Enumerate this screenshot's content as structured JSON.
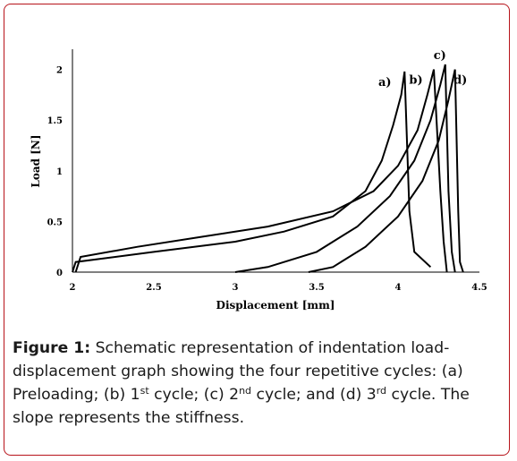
{
  "chart_data": {
    "type": "line",
    "xlabel": "Displacement [mm]",
    "ylabel": "Load [N]",
    "xlim": [
      2,
      4.5
    ],
    "ylim": [
      0,
      2.2
    ],
    "xticks": [
      "2",
      "2.5",
      "3",
      "3.5",
      "4",
      "4.5"
    ],
    "yticks": [
      "0",
      "0.5",
      "1",
      "1.5",
      "2"
    ],
    "grid": false,
    "series": [
      {
        "name": "a)",
        "loading": [
          [
            2.0,
            0.0
          ],
          [
            2.02,
            0.1
          ],
          [
            2.5,
            0.2
          ],
          [
            3.0,
            0.3
          ],
          [
            3.3,
            0.4
          ],
          [
            3.6,
            0.55
          ],
          [
            3.8,
            0.8
          ],
          [
            3.9,
            1.1
          ],
          [
            3.97,
            1.45
          ],
          [
            4.02,
            1.75
          ],
          [
            4.04,
            1.98
          ]
        ],
        "unloading": [
          [
            4.04,
            1.98
          ],
          [
            4.07,
            0.6
          ],
          [
            4.1,
            0.2
          ],
          [
            4.2,
            0.05
          ]
        ]
      },
      {
        "name": "b)",
        "loading": [
          [
            2.02,
            0.0
          ],
          [
            2.05,
            0.15
          ],
          [
            2.4,
            0.25
          ],
          [
            2.8,
            0.35
          ],
          [
            3.2,
            0.45
          ],
          [
            3.6,
            0.6
          ],
          [
            3.85,
            0.8
          ],
          [
            4.0,
            1.05
          ],
          [
            4.12,
            1.4
          ],
          [
            4.18,
            1.75
          ],
          [
            4.22,
            2.0
          ]
        ],
        "unloading": [
          [
            4.22,
            2.0
          ],
          [
            4.26,
            0.8
          ],
          [
            4.28,
            0.3
          ],
          [
            4.3,
            0.0
          ]
        ]
      },
      {
        "name": "c)",
        "loading": [
          [
            3.0,
            0.0
          ],
          [
            3.2,
            0.05
          ],
          [
            3.5,
            0.2
          ],
          [
            3.75,
            0.45
          ],
          [
            3.95,
            0.75
          ],
          [
            4.1,
            1.1
          ],
          [
            4.2,
            1.5
          ],
          [
            4.26,
            1.85
          ],
          [
            4.29,
            2.05
          ]
        ],
        "unloading": [
          [
            4.29,
            2.05
          ],
          [
            4.31,
            0.8
          ],
          [
            4.33,
            0.2
          ],
          [
            4.35,
            0.0
          ]
        ]
      },
      {
        "name": "d)",
        "loading": [
          [
            3.45,
            0.0
          ],
          [
            3.6,
            0.05
          ],
          [
            3.8,
            0.25
          ],
          [
            4.0,
            0.55
          ],
          [
            4.15,
            0.9
          ],
          [
            4.25,
            1.3
          ],
          [
            4.31,
            1.7
          ],
          [
            4.35,
            2.0
          ]
        ],
        "unloading": [
          [
            4.35,
            2.0
          ],
          [
            4.37,
            0.6
          ],
          [
            4.38,
            0.1
          ],
          [
            4.4,
            0.0
          ]
        ]
      }
    ]
  },
  "caption": {
    "label": "Figure 1:",
    "text": " Schematic representation of indentation load-displacement graph showing the four repetitive cycles: (a) Preloading; (b) 1",
    "sup1": "st",
    "mid1": " cycle; (c) 2",
    "sup2": "nd",
    "mid2": " cycle; and (d) 3",
    "sup3": "rd",
    "end": " cycle. The slope represents the stiffness."
  }
}
